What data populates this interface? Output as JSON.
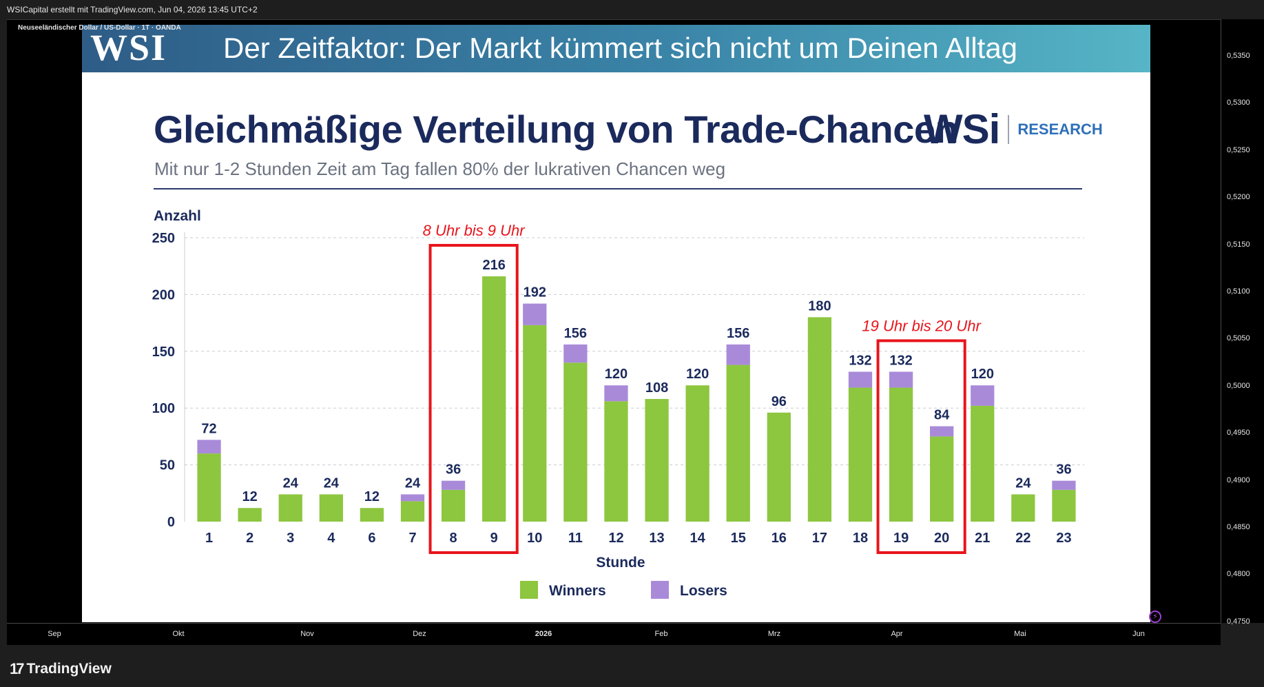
{
  "tradingview": {
    "header": "WSICapital erstellt mit TradingView.com, Jun 04, 2026 13:45 UTC+2",
    "symbol": "Neuseeländischer Dollar / US-Dollar · 1T · OANDA",
    "brand": "TradingView",
    "price_axis": [
      "0,5350",
      "0,5300",
      "0,5250",
      "0,5200",
      "0,5150",
      "0,5100",
      "0,5050",
      "0,5000",
      "0,4950",
      "0,4900",
      "0,4850",
      "0,4800",
      "0,4750"
    ],
    "time_axis": [
      "Sep",
      "Okt",
      "Nov",
      "Dez",
      "2026",
      "Feb",
      "Mrz",
      "Apr",
      "Mai",
      "Jun"
    ]
  },
  "slide": {
    "logo": "WSI",
    "banner_title": "Der Zeitfaktor: Der Markt kümmert sich nicht um Deinen Alltag",
    "research_logo": "WSi",
    "research_label": "RESEARCH"
  },
  "chart_data": {
    "type": "bar",
    "title": "Gleichmäßige Verteilung von Trade-Chancen",
    "subtitle": "Mit nur 1-2 Stunden Zeit am Tag fallen 80% der lukrativen Chancen weg",
    "xlabel": "Stunde",
    "ylabel": "Anzahl",
    "ylim": [
      0,
      250
    ],
    "yticks": [
      0,
      50,
      100,
      150,
      200,
      250
    ],
    "grid": true,
    "stacked": true,
    "legend_position": "bottom",
    "categories": [
      "1",
      "2",
      "3",
      "4",
      "6",
      "7",
      "8",
      "9",
      "10",
      "11",
      "12",
      "13",
      "14",
      "15",
      "16",
      "17",
      "18",
      "19",
      "20",
      "21",
      "22",
      "23"
    ],
    "series": [
      {
        "name": "Winners",
        "color": "#8dc63f",
        "values": [
          60,
          12,
          24,
          24,
          12,
          18,
          28,
          216,
          173,
          140,
          106,
          108,
          120,
          138,
          96,
          180,
          118,
          118,
          75,
          102,
          24,
          28
        ]
      },
      {
        "name": "Losers",
        "color": "#a98ad9",
        "values": [
          12,
          0,
          0,
          0,
          0,
          6,
          8,
          0,
          19,
          16,
          14,
          0,
          0,
          18,
          0,
          0,
          14,
          14,
          9,
          18,
          0,
          8
        ]
      }
    ],
    "totals": [
      72,
      12,
      24,
      24,
      12,
      24,
      36,
      216,
      192,
      156,
      120,
      108,
      120,
      156,
      96,
      180,
      132,
      132,
      84,
      120,
      24,
      36
    ],
    "annotations": [
      {
        "text": "8 Uhr bis 9 Uhr",
        "categories": [
          "8",
          "9"
        ],
        "color": "#e8141b"
      },
      {
        "text": "19 Uhr bis 20 Uhr",
        "categories": [
          "19",
          "20"
        ],
        "color": "#e8141b"
      }
    ]
  }
}
